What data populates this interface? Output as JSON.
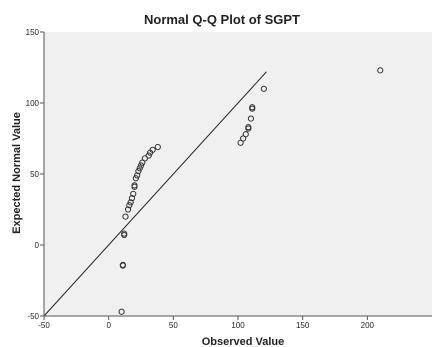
{
  "chart_data": {
    "type": "scatter",
    "title": "Normal Q-Q Plot of SGPT",
    "xlabel": "Observed Value",
    "ylabel": "Expected Normal Value",
    "xlim": [
      -50,
      250
    ],
    "ylim": [
      -50,
      150
    ],
    "xticks": [
      "-50",
      "0",
      "50",
      "100",
      "150",
      "200"
    ],
    "yticks": [
      "-50",
      "0",
      "50",
      "100",
      "150"
    ],
    "grid": false,
    "points": [
      {
        "x": 10,
        "y": -47
      },
      {
        "x": 11,
        "y": -14
      },
      {
        "x": 11,
        "y": -14.5
      },
      {
        "x": 12,
        "y": 7
      },
      {
        "x": 12,
        "y": 8
      },
      {
        "x": 13,
        "y": 20
      },
      {
        "x": 15,
        "y": 25
      },
      {
        "x": 16,
        "y": 28
      },
      {
        "x": 17,
        "y": 30
      },
      {
        "x": 18,
        "y": 33
      },
      {
        "x": 19,
        "y": 36
      },
      {
        "x": 20,
        "y": 41
      },
      {
        "x": 20,
        "y": 42
      },
      {
        "x": 21,
        "y": 47
      },
      {
        "x": 22,
        "y": 49
      },
      {
        "x": 23,
        "y": 52
      },
      {
        "x": 24,
        "y": 54
      },
      {
        "x": 25,
        "y": 56
      },
      {
        "x": 26,
        "y": 58
      },
      {
        "x": 28,
        "y": 61
      },
      {
        "x": 31,
        "y": 63
      },
      {
        "x": 32,
        "y": 65
      },
      {
        "x": 34,
        "y": 67
      },
      {
        "x": 38,
        "y": 69
      },
      {
        "x": 102,
        "y": 72
      },
      {
        "x": 104,
        "y": 75
      },
      {
        "x": 106,
        "y": 78
      },
      {
        "x": 108,
        "y": 82
      },
      {
        "x": 108,
        "y": 83
      },
      {
        "x": 110,
        "y": 89
      },
      {
        "x": 111,
        "y": 96
      },
      {
        "x": 111,
        "y": 97
      },
      {
        "x": 120,
        "y": 110
      },
      {
        "x": 210,
        "y": 123
      }
    ],
    "reference_line": {
      "x": [
        -50,
        122
      ],
      "y": [
        -50,
        122
      ]
    },
    "colors": {
      "plot_bg": "#f0f0f0",
      "markers": "#333333",
      "line": "#222222",
      "axes": "#555555"
    }
  }
}
